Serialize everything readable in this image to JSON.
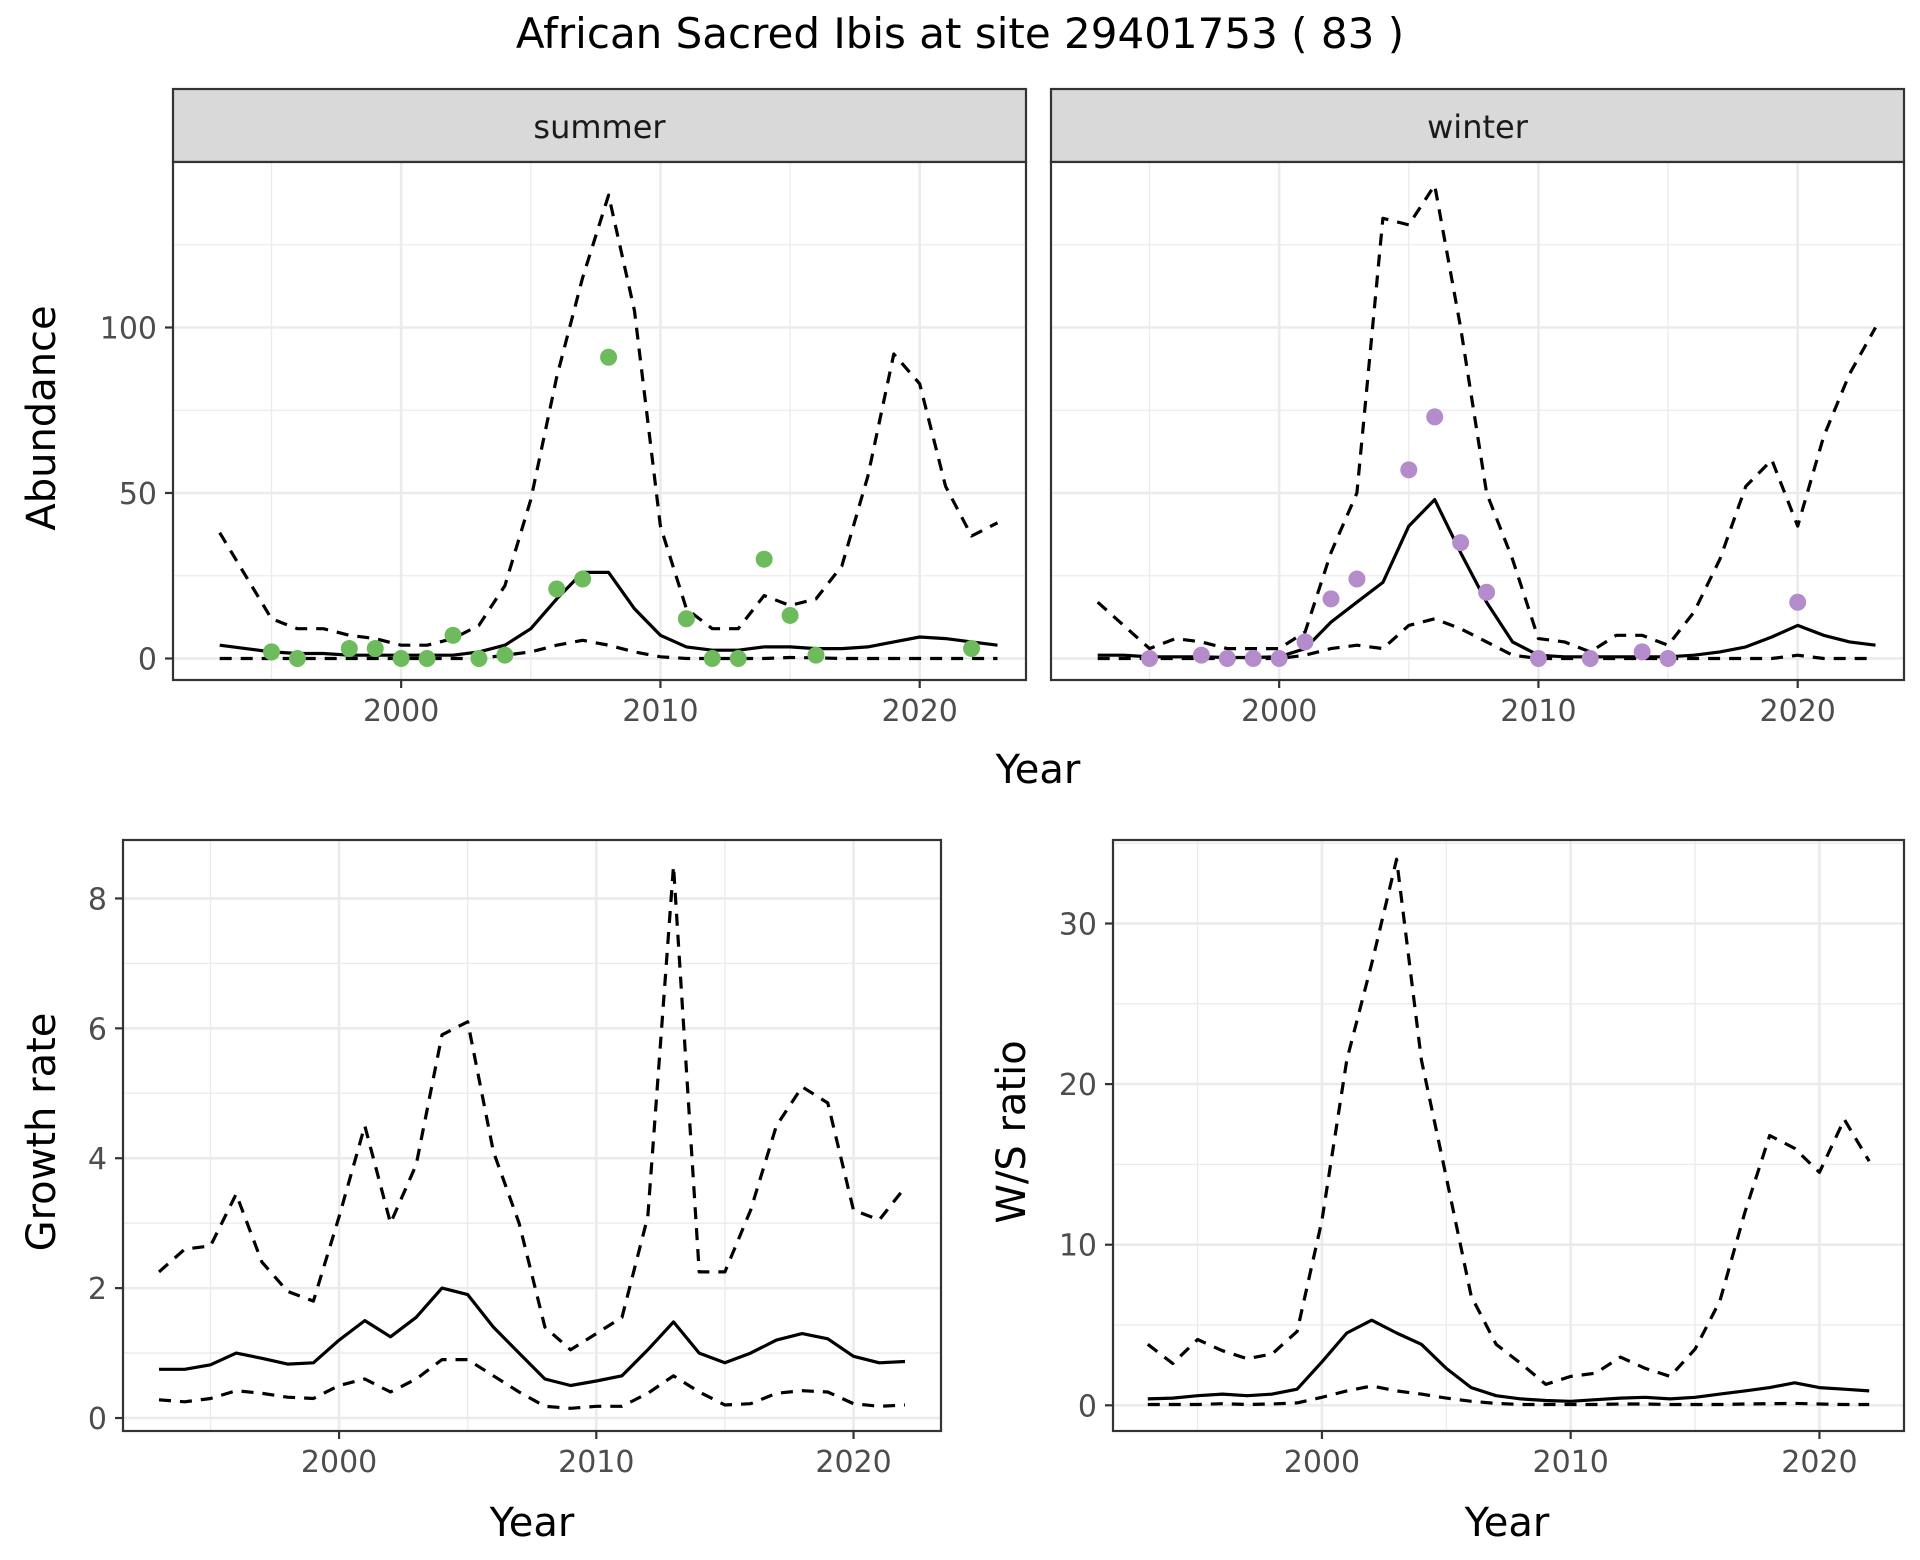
{
  "figure": {
    "title": "African Sacred Ibis at site 29401753 ( 83 )"
  },
  "chart_data": [
    {
      "panel": "summer",
      "type": "line",
      "strip_label": "summer",
      "xlabel": "Year",
      "ylabel": "Abundance",
      "xlim": [
        1991.2,
        2024.1
      ],
      "ylim": [
        -6.5,
        150
      ],
      "xticks": [
        2000,
        2010,
        2020
      ],
      "yticks": [
        0,
        50,
        100
      ],
      "point_color": "#6dbb5c",
      "x_lines": [
        1993,
        1994,
        1995,
        1996,
        1997,
        1998,
        1999,
        2000,
        2001,
        2002,
        2003,
        2004,
        2005,
        2006,
        2007,
        2008,
        2009,
        2010,
        2011,
        2012,
        2013,
        2014,
        2015,
        2016,
        2017,
        2018,
        2019,
        2020,
        2021,
        2022,
        2023
      ],
      "series": [
        {
          "role": "mean",
          "values": [
            4,
            3,
            2,
            1.5,
            1.5,
            1,
            1,
            1,
            1,
            1,
            2,
            4,
            9,
            18,
            26,
            26,
            15,
            7,
            3.5,
            2.5,
            2.5,
            3.5,
            3.5,
            3,
            3,
            3.5,
            5,
            6.5,
            6,
            5,
            4
          ]
        },
        {
          "role": "upper",
          "values": [
            38,
            25,
            12,
            9,
            9,
            7,
            6,
            4,
            4,
            6,
            10,
            22,
            48,
            85,
            115,
            140,
            105,
            40,
            15,
            9,
            9,
            19,
            16,
            18,
            28,
            55,
            92,
            83,
            52,
            37,
            41
          ]
        },
        {
          "role": "lower",
          "values": [
            0,
            0,
            0,
            0,
            0,
            0,
            0,
            0,
            0,
            0,
            0,
            1,
            2,
            4,
            5.5,
            4,
            2,
            0.5,
            0,
            0,
            0,
            0,
            0.3,
            0.2,
            0,
            0,
            0,
            0,
            0,
            0,
            0
          ]
        }
      ],
      "points": {
        "x": [
          1995,
          1996,
          1998,
          1999,
          2000,
          2001,
          2002,
          2003,
          2004,
          2006,
          2007,
          2008,
          2011,
          2012,
          2013,
          2014,
          2015,
          2016,
          2022
        ],
        "y": [
          2,
          0,
          3,
          3,
          0,
          0,
          7,
          0,
          1,
          21,
          24,
          91,
          12,
          0,
          0,
          30,
          13,
          1,
          3
        ]
      }
    },
    {
      "panel": "winter",
      "type": "line",
      "strip_label": "winter",
      "xlabel": "Year",
      "ylabel": "",
      "xlim": [
        1991.2,
        2024.1
      ],
      "ylim": [
        -6.5,
        150
      ],
      "xticks": [
        2000,
        2010,
        2020
      ],
      "yticks": [],
      "point_color": "#b48ccb",
      "x_lines": [
        1993,
        1994,
        1995,
        1996,
        1997,
        1998,
        1999,
        2000,
        2001,
        2002,
        2003,
        2004,
        2005,
        2006,
        2007,
        2008,
        2009,
        2010,
        2011,
        2012,
        2013,
        2014,
        2015,
        2016,
        2017,
        2018,
        2019,
        2020,
        2021,
        2022,
        2023
      ],
      "series": [
        {
          "role": "mean",
          "values": [
            1,
            1,
            0.5,
            0.5,
            0.5,
            0.3,
            0.3,
            0.5,
            3,
            11,
            17,
            23,
            40,
            48,
            32,
            17,
            5,
            1,
            0.5,
            0.5,
            0.5,
            0.5,
            0.5,
            1,
            2,
            3.5,
            6.5,
            10,
            7,
            5,
            4
          ]
        },
        {
          "role": "upper",
          "values": [
            17,
            10,
            3,
            6,
            5,
            3,
            3,
            3,
            8,
            32,
            50,
            133,
            131,
            143,
            100,
            50,
            30,
            6,
            5,
            2,
            7,
            7,
            4,
            14,
            30,
            52,
            60,
            40,
            67,
            86,
            100
          ]
        },
        {
          "role": "lower",
          "values": [
            0,
            0,
            0,
            0,
            0,
            0,
            0,
            0,
            1,
            3,
            4,
            3,
            10,
            12,
            9,
            5,
            1,
            0,
            0,
            0,
            0,
            0,
            0,
            0,
            0,
            0,
            0,
            1,
            0,
            0,
            0
          ]
        }
      ],
      "points": {
        "x": [
          1995,
          1997,
          1998,
          1999,
          2000,
          2001,
          2002,
          2003,
          2005,
          2006,
          2007,
          2008,
          2010,
          2012,
          2014,
          2015,
          2020
        ],
        "y": [
          0,
          1,
          0,
          0,
          0,
          5,
          18,
          24,
          57,
          73,
          35,
          20,
          0,
          0,
          2,
          0,
          17
        ]
      }
    },
    {
      "panel": "growth",
      "type": "line",
      "xlabel": "Year",
      "ylabel": "Growth rate",
      "xlim": [
        1991.6,
        2023.4
      ],
      "ylim": [
        -0.2,
        8.9
      ],
      "xticks": [
        2000,
        2010,
        2020
      ],
      "yticks": [
        0,
        2,
        4,
        6,
        8
      ],
      "x_lines": [
        1993,
        1994,
        1995,
        1996,
        1997,
        1998,
        1999,
        2000,
        2001,
        2002,
        2003,
        2004,
        2005,
        2006,
        2007,
        2008,
        2009,
        2010,
        2011,
        2012,
        2013,
        2014,
        2015,
        2016,
        2017,
        2018,
        2019,
        2020,
        2021,
        2022
      ],
      "series": [
        {
          "role": "mean",
          "values": [
            0.75,
            0.75,
            0.82,
            1.0,
            0.92,
            0.83,
            0.85,
            1.2,
            1.5,
            1.25,
            1.55,
            2.0,
            1.9,
            1.4,
            1.0,
            0.6,
            0.5,
            0.57,
            0.65,
            1.05,
            1.48,
            1.0,
            0.85,
            1.0,
            1.2,
            1.3,
            1.22,
            0.95,
            0.85,
            0.87
          ]
        },
        {
          "role": "upper",
          "values": [
            2.25,
            2.6,
            2.65,
            3.45,
            2.4,
            1.95,
            1.8,
            3.1,
            4.5,
            3.0,
            3.9,
            5.9,
            6.1,
            4.1,
            3.0,
            1.4,
            1.05,
            1.3,
            1.55,
            3.1,
            8.5,
            2.25,
            2.25,
            3.2,
            4.5,
            5.1,
            4.85,
            3.2,
            3.05,
            3.55
          ]
        },
        {
          "role": "lower",
          "values": [
            0.28,
            0.25,
            0.3,
            0.42,
            0.38,
            0.32,
            0.3,
            0.5,
            0.6,
            0.4,
            0.6,
            0.9,
            0.9,
            0.65,
            0.4,
            0.18,
            0.15,
            0.18,
            0.18,
            0.38,
            0.65,
            0.4,
            0.2,
            0.22,
            0.38,
            0.42,
            0.4,
            0.22,
            0.18,
            0.2
          ]
        }
      ]
    },
    {
      "panel": "ws_ratio",
      "type": "line",
      "xlabel": "Year",
      "ylabel": "W/S ratio",
      "xlim": [
        1991.6,
        2023.4
      ],
      "ylim": [
        -1.6,
        35.2
      ],
      "xticks": [
        2000,
        2010,
        2020
      ],
      "yticks": [
        0,
        10,
        20,
        30
      ],
      "x_lines": [
        1993,
        1994,
        1995,
        1996,
        1997,
        1998,
        1999,
        2000,
        2001,
        2002,
        2003,
        2004,
        2005,
        2006,
        2007,
        2008,
        2009,
        2010,
        2011,
        2012,
        2013,
        2014,
        2015,
        2016,
        2017,
        2018,
        2019,
        2020,
        2021,
        2022
      ],
      "series": [
        {
          "role": "mean",
          "values": [
            0.4,
            0.45,
            0.6,
            0.7,
            0.6,
            0.7,
            1.0,
            2.7,
            4.5,
            5.3,
            4.5,
            3.8,
            2.3,
            1.1,
            0.6,
            0.4,
            0.3,
            0.25,
            0.35,
            0.45,
            0.5,
            0.4,
            0.5,
            0.7,
            0.9,
            1.1,
            1.4,
            1.1,
            1.0,
            0.9
          ]
        },
        {
          "role": "upper",
          "values": [
            3.8,
            2.6,
            4.1,
            3.4,
            2.9,
            3.2,
            4.6,
            11.5,
            21.5,
            27.5,
            34.0,
            21.5,
            14.2,
            6.8,
            3.8,
            2.6,
            1.3,
            1.8,
            2.0,
            3.0,
            2.3,
            1.8,
            3.5,
            6.5,
            12.0,
            16.8,
            16.0,
            14.5,
            17.8,
            15.2
          ]
        },
        {
          "role": "lower",
          "values": [
            0.05,
            0.05,
            0.05,
            0.1,
            0.05,
            0.08,
            0.15,
            0.5,
            0.9,
            1.2,
            0.9,
            0.7,
            0.45,
            0.25,
            0.12,
            0.05,
            0.05,
            0.05,
            0.05,
            0.08,
            0.08,
            0.05,
            0.05,
            0.05,
            0.08,
            0.1,
            0.12,
            0.08,
            0.05,
            0.05
          ]
        }
      ]
    }
  ]
}
